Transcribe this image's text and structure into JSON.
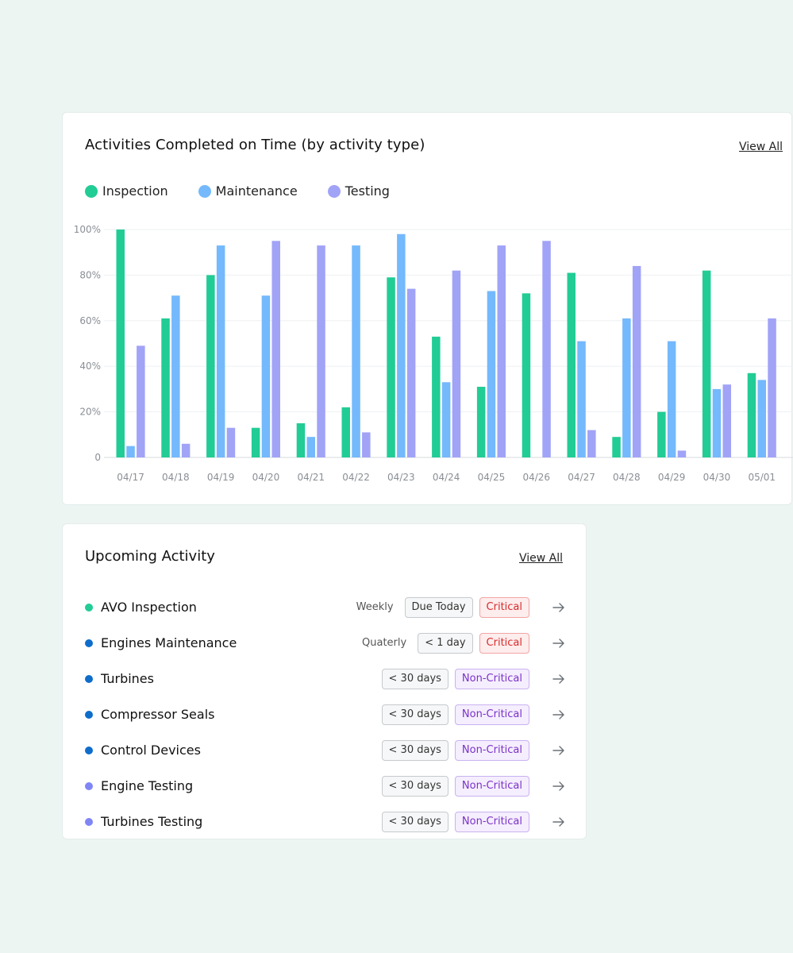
{
  "chart_card": {
    "title": "Activities Completed on Time (by activity type)",
    "view_all": "View All"
  },
  "colors": {
    "inspection": "#22CC95",
    "maintenance": "#74B9FB",
    "testing": "#A1A3F7",
    "dot_dark_blue": "#0E6DCB",
    "dot_violet": "#8085F5"
  },
  "chart_data": {
    "type": "bar",
    "title": "Activities Completed on Time (by activity type)",
    "xlabel": "",
    "ylabel": "",
    "ylim": [
      0,
      100
    ],
    "y_ticks": [
      "0",
      "20%",
      "40%",
      "60%",
      "80%",
      "100%"
    ],
    "grid": true,
    "legend_position": "top-left",
    "categories": [
      "04/17",
      "04/18",
      "04/19",
      "04/20",
      "04/21",
      "04/22",
      "04/23",
      "04/24",
      "04/25",
      "04/26",
      "04/27",
      "04/28",
      "04/29",
      "04/30",
      "05/01"
    ],
    "series": [
      {
        "name": "Inspection",
        "color": "#22CC95",
        "values": [
          100,
          61,
          80,
          13,
          15,
          22,
          79,
          53,
          31,
          72,
          81,
          9,
          20,
          82,
          37
        ]
      },
      {
        "name": "Maintenance",
        "color": "#74B9FB",
        "values": [
          5,
          71,
          93,
          71,
          9,
          93,
          98,
          33,
          73,
          0,
          51,
          61,
          51,
          30,
          34
        ]
      },
      {
        "name": "Testing",
        "color": "#A1A3F7",
        "values": [
          49,
          6,
          13,
          95,
          93,
          11,
          74,
          82,
          93,
          95,
          12,
          84,
          3,
          32,
          61
        ]
      }
    ]
  },
  "upcoming": {
    "title": "Upcoming Activity",
    "view_all": "View All",
    "items": [
      {
        "name": "AVO Inspection",
        "dot": "#22CC95",
        "freq": "Weekly",
        "due": "Due Today",
        "priority": "Critical",
        "priority_type": "crit"
      },
      {
        "name": "Engines Maintenance",
        "dot": "#0E6DCB",
        "freq": "Quaterly",
        "due": "< 1 day",
        "priority": "Critical",
        "priority_type": "crit"
      },
      {
        "name": "Turbines",
        "dot": "#0E6DCB",
        "freq": "",
        "due": "< 30 days",
        "priority": "Non-Critical",
        "priority_type": "noncrit"
      },
      {
        "name": "Compressor Seals",
        "dot": "#0E6DCB",
        "freq": "",
        "due": "< 30 days",
        "priority": "Non-Critical",
        "priority_type": "noncrit"
      },
      {
        "name": "Control Devices",
        "dot": "#0E6DCB",
        "freq": "",
        "due": "< 30 days",
        "priority": "Non-Critical",
        "priority_type": "noncrit"
      },
      {
        "name": "Engine Testing",
        "dot": "#8085F5",
        "freq": "",
        "due": "< 30 days",
        "priority": "Non-Critical",
        "priority_type": "noncrit"
      },
      {
        "name": "Turbines Testing",
        "dot": "#8085F5",
        "freq": "",
        "due": "< 30 days",
        "priority": "Non-Critical",
        "priority_type": "noncrit"
      }
    ]
  }
}
